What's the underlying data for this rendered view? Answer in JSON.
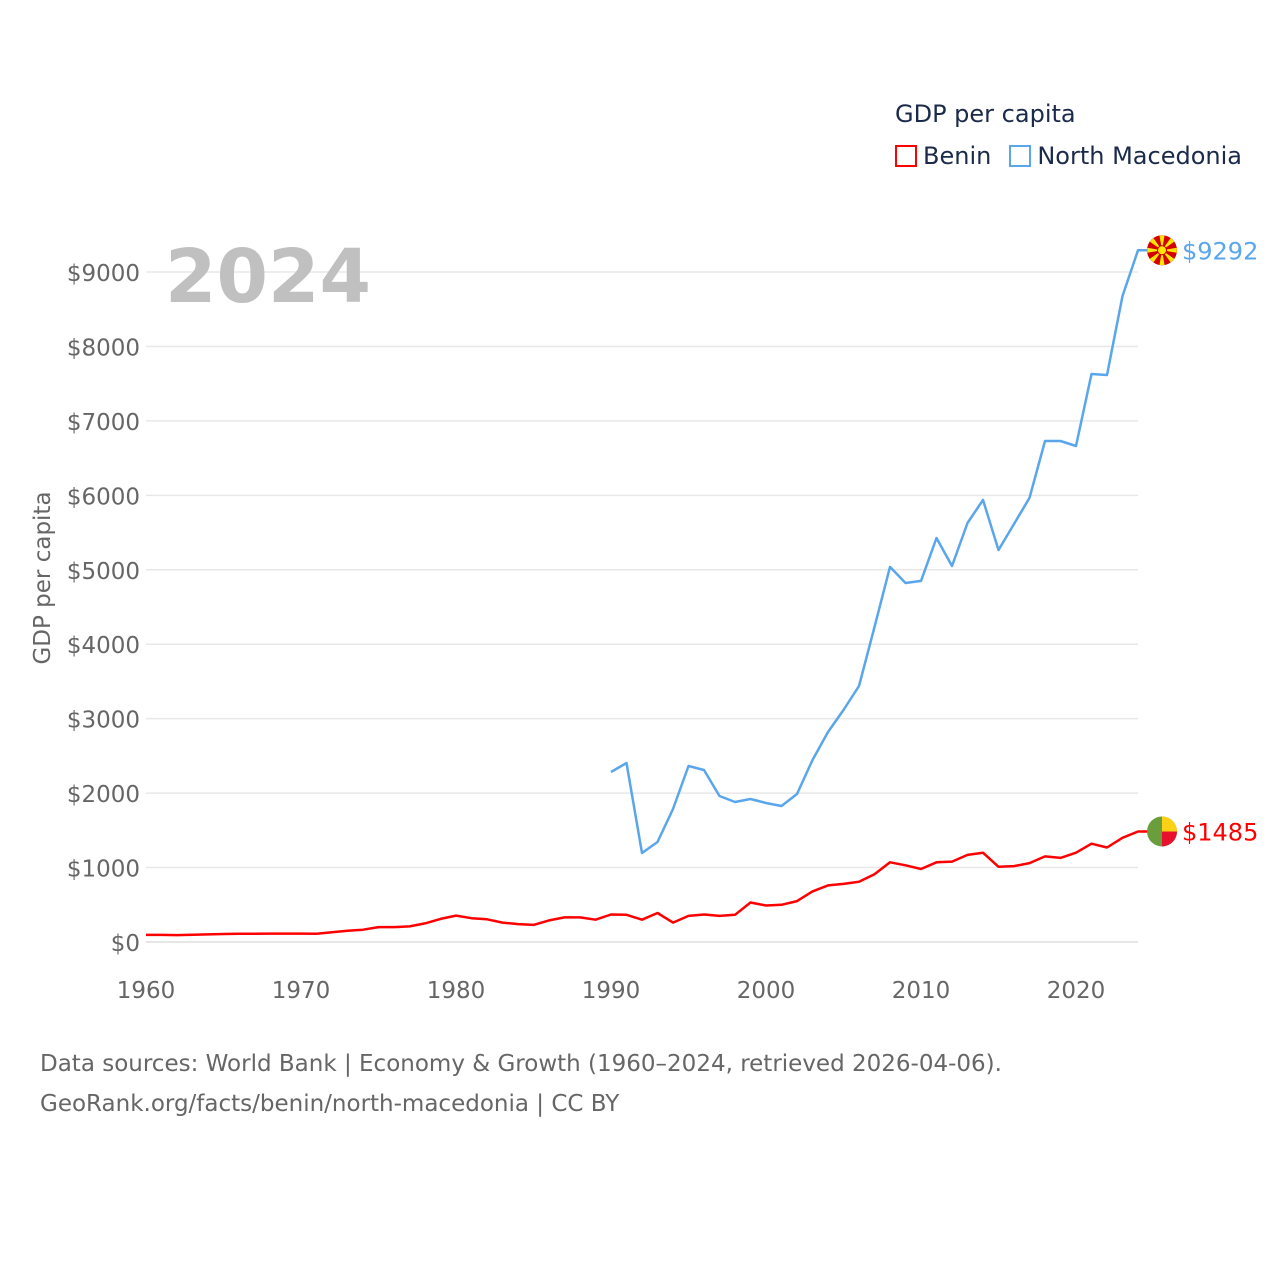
{
  "legend": {
    "title": "GDP per capita"
  },
  "footer": {
    "line1": "Data sources: World Bank | Economy & Growth (1960–2024, retrieved 2026-04-06).",
    "line2": "GeoRank.org/facts/benin/north-macedonia | CC BY"
  },
  "chart_data": {
    "type": "line",
    "year_label": "2024",
    "ylabel": "GDP per capita",
    "xlim": [
      1960,
      2024
    ],
    "ylim": [
      0,
      9300
    ],
    "x_ticks": [
      "1960",
      "1970",
      "1980",
      "1990",
      "2000",
      "2010",
      "2020"
    ],
    "y_ticks": [
      "$0",
      "$1000",
      "$2000",
      "$3000",
      "$4000",
      "$5000",
      "$6000",
      "$7000",
      "$8000",
      "$9000"
    ],
    "grid": true,
    "legend_position": "top-right",
    "series": [
      {
        "name": "Benin",
        "color": "#ff0000",
        "end_label": "$1485",
        "flag": "benin-flag",
        "start_year": 1960,
        "values": [
          95,
          95,
          93,
          98,
          102,
          107,
          110,
          110,
          113,
          113,
          113,
          112,
          130,
          150,
          165,
          200,
          200,
          210,
          250,
          310,
          355,
          320,
          305,
          260,
          240,
          230,
          290,
          330,
          330,
          300,
          370,
          365,
          300,
          390,
          260,
          350,
          370,
          350,
          365,
          530,
          490,
          500,
          550,
          680,
          760,
          780,
          810,
          910,
          1070,
          1030,
          980,
          1070,
          1080,
          1170,
          1200,
          1010,
          1020,
          1060,
          1150,
          1130,
          1200,
          1320,
          1270,
          1400,
          1485
        ]
      },
      {
        "name": "North Macedonia",
        "color": "#5aa6ec",
        "end_label": "$9292",
        "flag": "north-macedonia-flag",
        "start_year": 1990,
        "values": [
          2284,
          2405,
          1196,
          1343,
          1787,
          2364,
          2311,
          1961,
          1881,
          1921,
          1867,
          1827,
          1988,
          2445,
          2821,
          3117,
          3439,
          4232,
          5038,
          4823,
          4850,
          5427,
          5051,
          5629,
          5938,
          5266,
          5615,
          5965,
          6730,
          6730,
          6663,
          7630,
          7617,
          8678,
          9292
        ]
      }
    ]
  }
}
